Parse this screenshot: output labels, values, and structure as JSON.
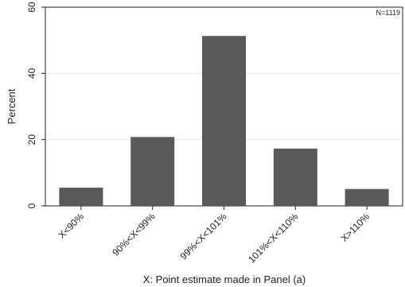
{
  "chart_data": {
    "type": "bar",
    "title": "",
    "xlabel": "X: Point estimate made in Panel (a)",
    "ylabel": "Percent",
    "annotation": "N=1119",
    "categories": [
      "X<90%",
      "90%<X<99%",
      "99%<X<101%",
      "101%<X<110%",
      "X>110%"
    ],
    "values": [
      5.5,
      20.8,
      51.3,
      17.3,
      5.1
    ],
    "ylim": [
      0,
      60
    ],
    "yticks": [
      0,
      20,
      40,
      60
    ],
    "grid": true,
    "bar_color": "#595959",
    "grid_color": "#e6e6e6"
  }
}
